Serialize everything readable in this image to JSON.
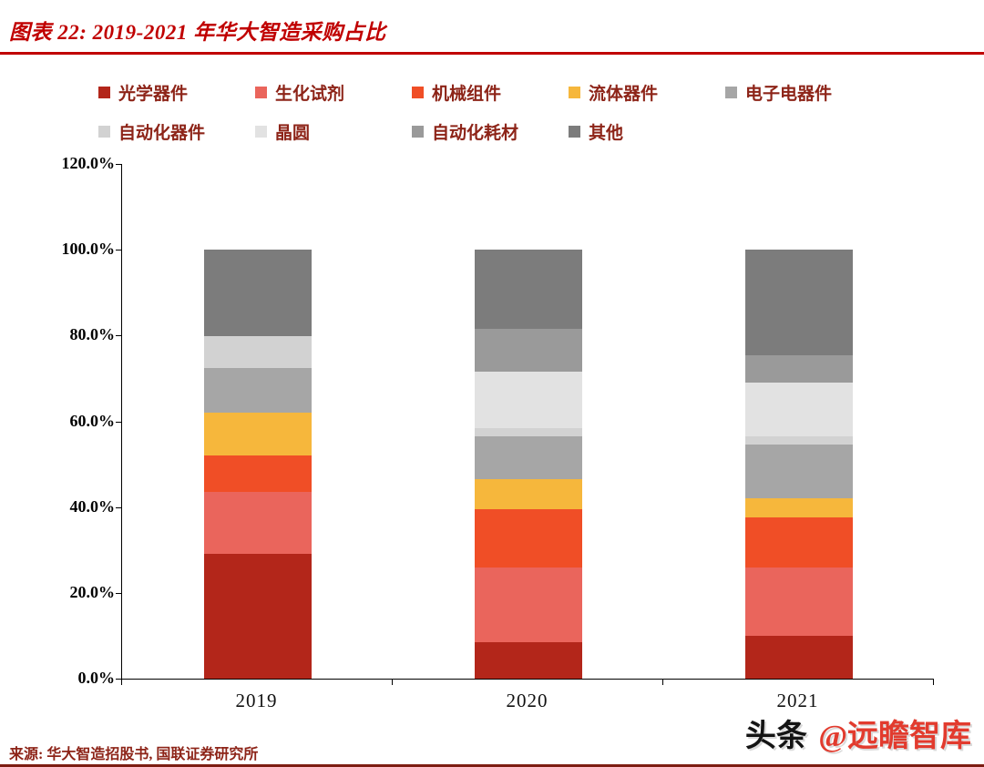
{
  "page": {
    "background": "#ffffff",
    "accent_color": "#c00000",
    "dark_red_text": "#8d2418"
  },
  "header": {
    "title": "图表 22: 2019-2021 年华大智造采购占比"
  },
  "chart_data": {
    "type": "bar",
    "stacked": true,
    "title": "2019-2021 年华大智造采购占比",
    "categories": [
      "2019",
      "2020",
      "2021"
    ],
    "series": [
      {
        "name": "光学器件",
        "color": "#b3261a",
        "values": [
          29.0,
          8.5,
          10.0
        ]
      },
      {
        "name": "生化试剂",
        "color": "#ea655c",
        "values": [
          14.5,
          17.5,
          16.0
        ]
      },
      {
        "name": "机械组件",
        "color": "#f04e26",
        "values": [
          8.5,
          13.5,
          11.5
        ]
      },
      {
        "name": "流体器件",
        "color": "#f6b73c",
        "values": [
          10.0,
          7.0,
          4.5
        ]
      },
      {
        "name": "电子电器件",
        "color": "#a6a6a6",
        "values": [
          10.5,
          10.0,
          12.5
        ]
      },
      {
        "name": "自动化器件",
        "color": "#d2d2d2",
        "values": [
          7.3,
          2.0,
          2.0
        ]
      },
      {
        "name": "晶圆",
        "color": "#e2e2e2",
        "values": [
          0.0,
          13.0,
          12.5
        ]
      },
      {
        "name": "自动化耗材",
        "color": "#9a9a9a",
        "values": [
          0.0,
          10.0,
          6.5
        ]
      },
      {
        "name": "其他",
        "color": "#7c7c7c",
        "values": [
          20.2,
          18.5,
          24.5
        ]
      }
    ],
    "ylim": [
      0,
      120
    ],
    "yticks": [
      {
        "value": 0,
        "label": "0.0%"
      },
      {
        "value": 20,
        "label": "20.0%"
      },
      {
        "value": 40,
        "label": "40.0%"
      },
      {
        "value": 60,
        "label": "60.0%"
      },
      {
        "value": 80,
        "label": "80.0%"
      },
      {
        "value": 100,
        "label": "100.0%"
      },
      {
        "value": 120,
        "label": "120.0%"
      }
    ],
    "legend_position": "top",
    "grid": false
  },
  "source": {
    "text": "来源: 华大智造招股书, 国联证券研究所"
  },
  "watermark": {
    "brand": "头条",
    "handle": "@远瞻智库"
  }
}
